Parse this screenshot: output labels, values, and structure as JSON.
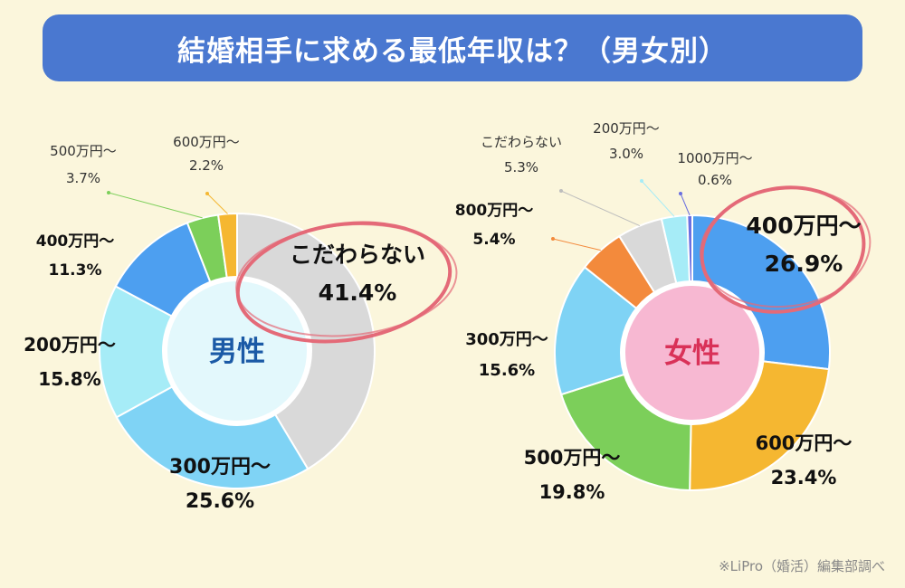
{
  "title": "結婚相手に求める最低年収は？（男女別）",
  "source": "※LiPro（婚活）編集部調べ",
  "chart_data": [
    {
      "type": "pie",
      "center_label": "男性",
      "slices": [
        {
          "label": "こだわらない",
          "value": 41.4,
          "value_text": "41.4%",
          "color": "#d9d9d9"
        },
        {
          "label": "300万円～",
          "value": 25.6,
          "value_text": "25.6%",
          "color": "#7fd3f5"
        },
        {
          "label": "200万円～",
          "value": 15.8,
          "value_text": "15.8%",
          "color": "#a6ecf7"
        },
        {
          "label": "400万円～",
          "value": 11.3,
          "value_text": "11.3%",
          "color": "#4d9ff0"
        },
        {
          "label": "500万円～",
          "value": 3.7,
          "value_text": "3.7%",
          "color": "#7ccf5a"
        },
        {
          "label": "600万円～",
          "value": 2.2,
          "value_text": "2.2%",
          "color": "#f5b731"
        }
      ]
    },
    {
      "type": "pie",
      "center_label": "女性",
      "slices": [
        {
          "label": "400万円～",
          "value": 26.9,
          "value_text": "26.9%",
          "color": "#4d9ff0"
        },
        {
          "label": "600万円～",
          "value": 23.4,
          "value_text": "23.4%",
          "color": "#f5b731"
        },
        {
          "label": "500万円～",
          "value": 19.8,
          "value_text": "19.8%",
          "color": "#7ccf5a"
        },
        {
          "label": "300万円～",
          "value": 15.6,
          "value_text": "15.6%",
          "color": "#7fd3f5"
        },
        {
          "label": "800万円～",
          "value": 5.4,
          "value_text": "5.4%",
          "color": "#f38a3c"
        },
        {
          "label": "こだわらない",
          "value": 5.3,
          "value_text": "5.3%",
          "color": "#d9d9d9"
        },
        {
          "label": "200万円～",
          "value": 3.0,
          "value_text": "3.0%",
          "color": "#a6ecf7"
        },
        {
          "label": "1000万円～",
          "value": 0.6,
          "value_text": "0.6%",
          "color": "#6a6fe0"
        }
      ]
    }
  ]
}
